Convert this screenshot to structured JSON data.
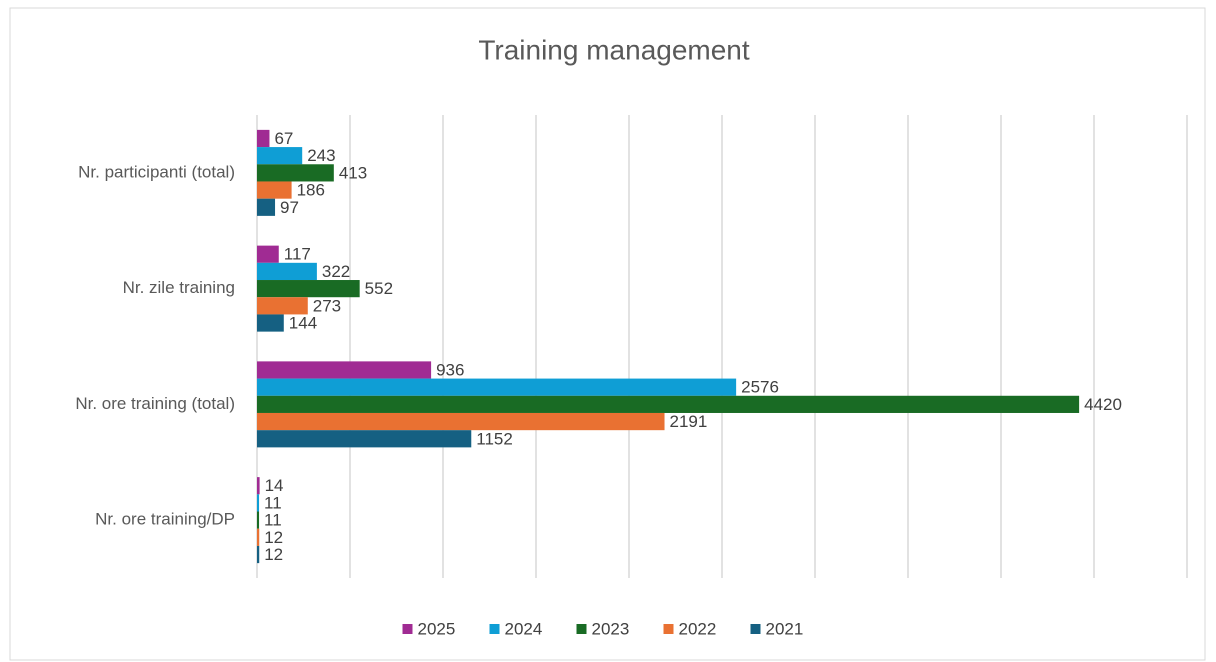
{
  "chart_data": {
    "type": "hbar",
    "title": "Training management",
    "categories": [
      "Nr. participanti (total)",
      "Nr. zile training",
      "Nr. ore training (total)",
      "Nr. ore training/DP"
    ],
    "series": [
      {
        "name": "2025",
        "color": "#a02b93",
        "values": [
          67,
          117,
          936,
          14
        ]
      },
      {
        "name": "2024",
        "color": "#0f9ed5",
        "values": [
          243,
          322,
          2576,
          11
        ]
      },
      {
        "name": "2023",
        "color": "#196b24",
        "values": [
          413,
          552,
          4420,
          11
        ]
      },
      {
        "name": "2022",
        "color": "#e97132",
        "values": [
          186,
          273,
          2191,
          12
        ]
      },
      {
        "name": "2021",
        "color": "#156082",
        "values": [
          97,
          144,
          1152,
          12
        ]
      }
    ],
    "xlim": [
      0,
      5000
    ],
    "xticks": [
      0,
      500,
      1000,
      1500,
      2000,
      2500,
      3000,
      3500,
      4000,
      4500,
      5000
    ],
    "grid": true,
    "legend": "bottom"
  }
}
